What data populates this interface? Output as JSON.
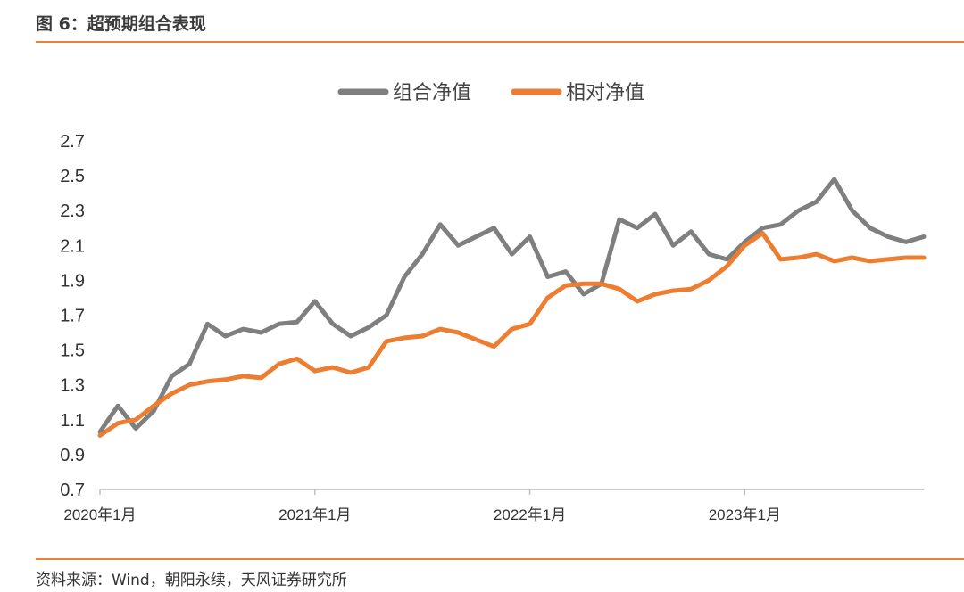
{
  "figure_title": "图 6：超预期组合表现",
  "source": "资料来源：Wind，朝阳永续，天风证券研究所",
  "colors": {
    "accent": "#e8823a",
    "series_portfolio": "#7f7f7f",
    "series_relative": "#ed7d31"
  },
  "chart_data": {
    "type": "line",
    "title": "",
    "xlabel": "",
    "ylabel": "",
    "ylim": [
      0.7,
      2.7
    ],
    "yticks": [
      "2.7",
      "2.5",
      "2.3",
      "2.1",
      "1.9",
      "1.7",
      "1.5",
      "1.3",
      "1.1",
      "0.9",
      "0.7"
    ],
    "xticks": [
      "2020年1月",
      "2021年1月",
      "2022年1月",
      "2023年1月"
    ],
    "legend_position": "top-center",
    "grid": false,
    "x": [
      "2020-01",
      "2020-02",
      "2020-03",
      "2020-04",
      "2020-05",
      "2020-06",
      "2020-07",
      "2020-08",
      "2020-09",
      "2020-10",
      "2020-11",
      "2020-12",
      "2021-01",
      "2021-02",
      "2021-03",
      "2021-04",
      "2021-05",
      "2021-06",
      "2021-07",
      "2021-08",
      "2021-09",
      "2021-10",
      "2021-11",
      "2021-12",
      "2022-01",
      "2022-02",
      "2022-03",
      "2022-04",
      "2022-05",
      "2022-06",
      "2022-07",
      "2022-08",
      "2022-09",
      "2022-10",
      "2022-11",
      "2022-12",
      "2023-01",
      "2023-02",
      "2023-03",
      "2023-04",
      "2023-05",
      "2023-06",
      "2023-07",
      "2023-08",
      "2023-09",
      "2023-10",
      "2023-11"
    ],
    "series": [
      {
        "name": "组合净值",
        "color": "#7f7f7f",
        "values": [
          1.03,
          1.18,
          1.05,
          1.15,
          1.35,
          1.42,
          1.65,
          1.58,
          1.62,
          1.6,
          1.65,
          1.66,
          1.78,
          1.65,
          1.58,
          1.63,
          1.7,
          1.92,
          2.05,
          2.22,
          2.1,
          2.15,
          2.2,
          2.05,
          2.15,
          1.92,
          1.95,
          1.82,
          1.88,
          2.25,
          2.2,
          2.28,
          2.1,
          2.18,
          2.05,
          2.02,
          2.12,
          2.2,
          2.22,
          2.3,
          2.35,
          2.48,
          2.3,
          2.2,
          2.15,
          2.12,
          2.15
        ]
      },
      {
        "name": "相对净值",
        "color": "#ed7d31",
        "values": [
          1.01,
          1.08,
          1.1,
          1.18,
          1.25,
          1.3,
          1.32,
          1.33,
          1.35,
          1.34,
          1.42,
          1.45,
          1.38,
          1.4,
          1.37,
          1.4,
          1.55,
          1.57,
          1.58,
          1.62,
          1.6,
          1.56,
          1.52,
          1.62,
          1.65,
          1.8,
          1.87,
          1.88,
          1.88,
          1.85,
          1.78,
          1.82,
          1.84,
          1.85,
          1.9,
          1.98,
          2.1,
          2.17,
          2.02,
          2.03,
          2.05,
          2.01,
          2.03,
          2.01,
          2.02,
          2.03,
          2.03
        ]
      }
    ]
  }
}
